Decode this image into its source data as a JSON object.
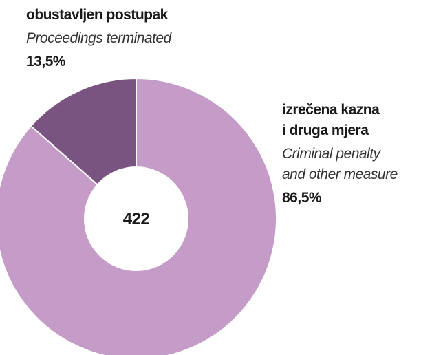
{
  "chart_data": {
    "type": "donut",
    "categories": [
      [
        "izrečena kazna",
        "i druga mjera"
      ],
      [
        "obustavljen postupak"
      ]
    ],
    "categories_en": [
      [
        "Criminal penalty",
        "and other measure"
      ],
      [
        "Proceedings terminated"
      ]
    ],
    "values": [
      86.5,
      13.5
    ],
    "value_labels": [
      "86,5%",
      "13,5%"
    ],
    "colors": [
      "#c49cc7",
      "#7a5480"
    ],
    "total": 422
  }
}
